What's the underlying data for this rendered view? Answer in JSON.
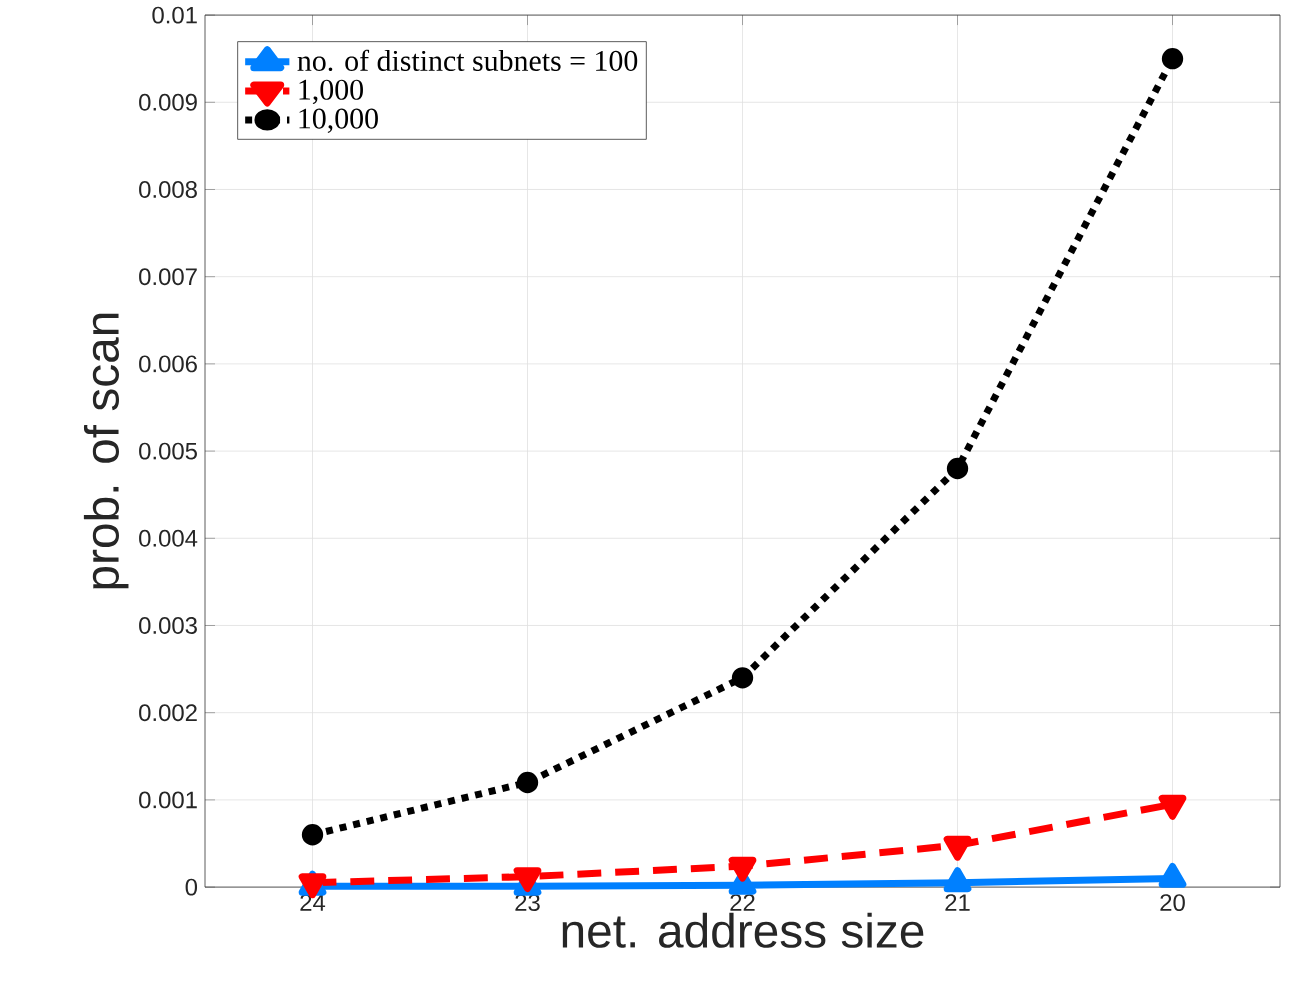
{
  "chart_data": {
    "type": "line",
    "xlabel": "net. address size",
    "ylabel": "prob. of scan",
    "categories": [
      "24",
      "23",
      "22",
      "21",
      "20"
    ],
    "series": [
      {
        "name": "no. of distinct subnets = 100",
        "color": "#0080ff",
        "marker": "triangle",
        "line_style": "solid",
        "values": [
          1e-05,
          1e-05,
          2e-05,
          5e-05,
          0.0001
        ]
      },
      {
        "name": "1,000",
        "color": "#ff0000",
        "marker": "triangle-down",
        "line_style": "dashed",
        "values": [
          5e-05,
          0.00012,
          0.00024,
          0.00048,
          0.00095
        ]
      },
      {
        "name": "10,000",
        "color": "#000000",
        "marker": "circle",
        "line_style": "dotted",
        "values": [
          0.0006,
          0.0012,
          0.0024,
          0.0048,
          0.0095
        ]
      }
    ],
    "ylim": [
      0,
      0.01
    ],
    "yticks": [
      0,
      0.001,
      0.002,
      0.003,
      0.004,
      0.005,
      0.006,
      0.007,
      0.008,
      0.009,
      0.01
    ],
    "grid": true,
    "legend": "top left"
  }
}
